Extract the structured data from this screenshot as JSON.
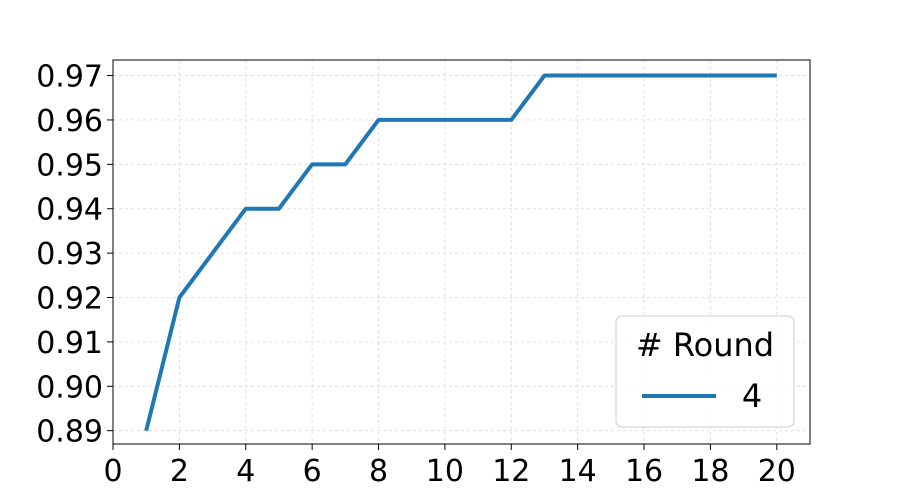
{
  "chart_data": {
    "type": "line",
    "title": "",
    "xlabel": "",
    "ylabel": "",
    "xlim": [
      0,
      21
    ],
    "ylim": [
      0.887,
      0.9735
    ],
    "xticks": [
      0,
      2,
      4,
      6,
      8,
      10,
      12,
      14,
      16,
      18,
      20
    ],
    "yticks": [
      0.89,
      0.9,
      0.91,
      0.92,
      0.93,
      0.94,
      0.95,
      0.96,
      0.97
    ],
    "grid": true,
    "legend": {
      "title": "# Round",
      "placement": "lower-right"
    },
    "series": [
      {
        "name": "4",
        "color": "#1f77b4",
        "x": [
          1,
          2,
          3,
          4,
          5,
          6,
          7,
          8,
          9,
          10,
          11,
          12,
          13,
          14,
          15,
          16,
          17,
          18,
          19,
          20
        ],
        "y": [
          0.89,
          0.92,
          0.93,
          0.94,
          0.94,
          0.95,
          0.95,
          0.96,
          0.96,
          0.96,
          0.96,
          0.96,
          0.97,
          0.97,
          0.97,
          0.97,
          0.97,
          0.97,
          0.97,
          0.97
        ]
      }
    ]
  }
}
